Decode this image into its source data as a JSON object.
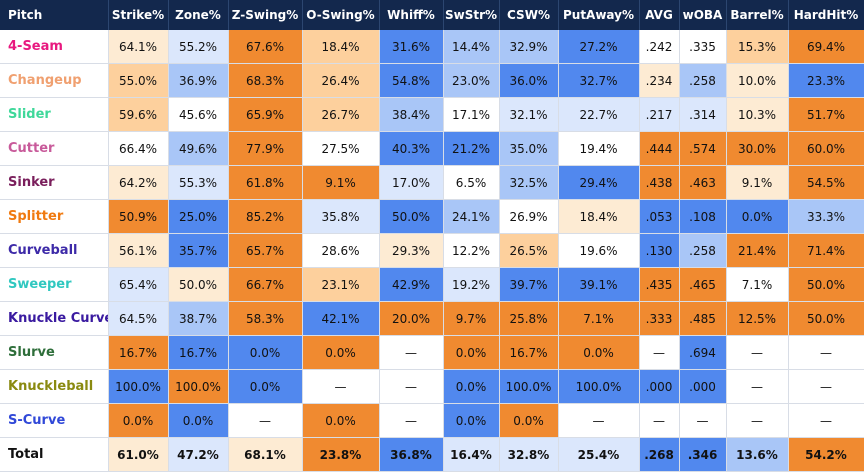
{
  "columns": [
    "Pitch",
    "Strike%",
    "Zone%",
    "Z-Swing%",
    "O-Swing%",
    "Whiff%",
    "SwStr%",
    "CSW%",
    "PutAway%",
    "AVG",
    "wOBA",
    "Barrel%",
    "HardHit%"
  ],
  "legend_colors": {
    "C0": "#ffffff",
    "CL": "#fdebd3",
    "CM": "#fdd09d",
    "CH": "#f08a30",
    "BL": "#dbe7fc",
    "BM": "#a9c6f7",
    "BH": "#5188ee"
  },
  "rows": [
    {
      "name": "4-Seam",
      "color": "#e8187f",
      "cells": [
        {
          "v": "64.1%",
          "c": "CL"
        },
        {
          "v": "55.2%",
          "c": "BL"
        },
        {
          "v": "67.6%",
          "c": "CH"
        },
        {
          "v": "18.4%",
          "c": "CM"
        },
        {
          "v": "31.6%",
          "c": "BH"
        },
        {
          "v": "14.4%",
          "c": "BM"
        },
        {
          "v": "32.9%",
          "c": "BM"
        },
        {
          "v": "27.2%",
          "c": "BH"
        },
        {
          "v": ".242",
          "c": "C0"
        },
        {
          "v": ".335",
          "c": "C0"
        },
        {
          "v": "15.3%",
          "c": "CM"
        },
        {
          "v": "69.4%",
          "c": "CH"
        }
      ]
    },
    {
      "name": "Changeup",
      "color": "#f0a070",
      "cells": [
        {
          "v": "55.0%",
          "c": "CM"
        },
        {
          "v": "36.9%",
          "c": "BM"
        },
        {
          "v": "68.3%",
          "c": "CH"
        },
        {
          "v": "26.4%",
          "c": "CM"
        },
        {
          "v": "54.8%",
          "c": "BH"
        },
        {
          "v": "23.0%",
          "c": "BM"
        },
        {
          "v": "36.0%",
          "c": "BH"
        },
        {
          "v": "32.7%",
          "c": "BH"
        },
        {
          "v": ".234",
          "c": "CL"
        },
        {
          "v": ".258",
          "c": "BM"
        },
        {
          "v": "10.0%",
          "c": "CL"
        },
        {
          "v": "23.3%",
          "c": "BH"
        }
      ]
    },
    {
      "name": "Slider",
      "color": "#3fd89a",
      "cells": [
        {
          "v": "59.6%",
          "c": "CM"
        },
        {
          "v": "45.6%",
          "c": "C0"
        },
        {
          "v": "65.9%",
          "c": "CH"
        },
        {
          "v": "26.7%",
          "c": "CM"
        },
        {
          "v": "38.4%",
          "c": "BM"
        },
        {
          "v": "17.1%",
          "c": "C0"
        },
        {
          "v": "32.1%",
          "c": "BL"
        },
        {
          "v": "22.7%",
          "c": "BL"
        },
        {
          "v": ".217",
          "c": "BL"
        },
        {
          "v": ".314",
          "c": "BL"
        },
        {
          "v": "10.3%",
          "c": "CL"
        },
        {
          "v": "51.7%",
          "c": "CH"
        }
      ]
    },
    {
      "name": "Cutter",
      "color": "#c85a9a",
      "cells": [
        {
          "v": "66.4%",
          "c": "C0"
        },
        {
          "v": "49.6%",
          "c": "BM"
        },
        {
          "v": "77.9%",
          "c": "CH"
        },
        {
          "v": "27.5%",
          "c": "C0"
        },
        {
          "v": "40.3%",
          "c": "BH"
        },
        {
          "v": "21.2%",
          "c": "BH"
        },
        {
          "v": "35.0%",
          "c": "BM"
        },
        {
          "v": "19.4%",
          "c": "C0"
        },
        {
          "v": ".444",
          "c": "CH"
        },
        {
          "v": ".574",
          "c": "CH"
        },
        {
          "v": "30.0%",
          "c": "CH"
        },
        {
          "v": "60.0%",
          "c": "CH"
        }
      ]
    },
    {
      "name": "Sinker",
      "color": "#7a1f5c",
      "cells": [
        {
          "v": "64.2%",
          "c": "CL"
        },
        {
          "v": "55.3%",
          "c": "BL"
        },
        {
          "v": "61.8%",
          "c": "CH"
        },
        {
          "v": "9.1%",
          "c": "CH"
        },
        {
          "v": "17.0%",
          "c": "BL"
        },
        {
          "v": "6.5%",
          "c": "C0"
        },
        {
          "v": "32.5%",
          "c": "BM"
        },
        {
          "v": "29.4%",
          "c": "BH"
        },
        {
          "v": ".438",
          "c": "CH"
        },
        {
          "v": ".463",
          "c": "CH"
        },
        {
          "v": "9.1%",
          "c": "CL"
        },
        {
          "v": "54.5%",
          "c": "CH"
        }
      ]
    },
    {
      "name": "Splitter",
      "color": "#f07a10",
      "cells": [
        {
          "v": "50.9%",
          "c": "CH"
        },
        {
          "v": "25.0%",
          "c": "BH"
        },
        {
          "v": "85.2%",
          "c": "CH"
        },
        {
          "v": "35.8%",
          "c": "BL"
        },
        {
          "v": "50.0%",
          "c": "BH"
        },
        {
          "v": "24.1%",
          "c": "BM"
        },
        {
          "v": "26.9%",
          "c": "C0"
        },
        {
          "v": "18.4%",
          "c": "CL"
        },
        {
          "v": ".053",
          "c": "BH"
        },
        {
          "v": ".108",
          "c": "BH"
        },
        {
          "v": "0.0%",
          "c": "BH"
        },
        {
          "v": "33.3%",
          "c": "BM"
        }
      ]
    },
    {
      "name": "Curveball",
      "color": "#3d2aa8",
      "cells": [
        {
          "v": "56.1%",
          "c": "CL"
        },
        {
          "v": "35.7%",
          "c": "BH"
        },
        {
          "v": "65.7%",
          "c": "CH"
        },
        {
          "v": "28.6%",
          "c": "C0"
        },
        {
          "v": "29.3%",
          "c": "CL"
        },
        {
          "v": "12.2%",
          "c": "C0"
        },
        {
          "v": "26.5%",
          "c": "CM"
        },
        {
          "v": "19.6%",
          "c": "C0"
        },
        {
          "v": ".130",
          "c": "BH"
        },
        {
          "v": ".258",
          "c": "BM"
        },
        {
          "v": "21.4%",
          "c": "CH"
        },
        {
          "v": "71.4%",
          "c": "CH"
        }
      ]
    },
    {
      "name": "Sweeper",
      "color": "#30c8c0",
      "cells": [
        {
          "v": "65.4%",
          "c": "BL"
        },
        {
          "v": "50.0%",
          "c": "CL"
        },
        {
          "v": "66.7%",
          "c": "CH"
        },
        {
          "v": "23.1%",
          "c": "CM"
        },
        {
          "v": "42.9%",
          "c": "BH"
        },
        {
          "v": "19.2%",
          "c": "BL"
        },
        {
          "v": "39.7%",
          "c": "BH"
        },
        {
          "v": "39.1%",
          "c": "BH"
        },
        {
          "v": ".435",
          "c": "CH"
        },
        {
          "v": ".465",
          "c": "CH"
        },
        {
          "v": "7.1%",
          "c": "C0"
        },
        {
          "v": "50.0%",
          "c": "CH"
        }
      ]
    },
    {
      "name": "Knuckle Curve",
      "color": "#3a1aa0",
      "cells": [
        {
          "v": "64.5%",
          "c": "BL"
        },
        {
          "v": "38.7%",
          "c": "BM"
        },
        {
          "v": "58.3%",
          "c": "CH"
        },
        {
          "v": "42.1%",
          "c": "BH"
        },
        {
          "v": "20.0%",
          "c": "CH"
        },
        {
          "v": "9.7%",
          "c": "CH"
        },
        {
          "v": "25.8%",
          "c": "CH"
        },
        {
          "v": "7.1%",
          "c": "CH"
        },
        {
          "v": ".333",
          "c": "CH"
        },
        {
          "v": ".485",
          "c": "CH"
        },
        {
          "v": "12.5%",
          "c": "CH"
        },
        {
          "v": "50.0%",
          "c": "CH"
        }
      ]
    },
    {
      "name": "Slurve",
      "color": "#2e6e3a",
      "cells": [
        {
          "v": "16.7%",
          "c": "CH"
        },
        {
          "v": "16.7%",
          "c": "BH"
        },
        {
          "v": "0.0%",
          "c": "BH"
        },
        {
          "v": "0.0%",
          "c": "CH"
        },
        {
          "v": "—",
          "c": "C0"
        },
        {
          "v": "0.0%",
          "c": "CH"
        },
        {
          "v": "16.7%",
          "c": "CH"
        },
        {
          "v": "0.0%",
          "c": "CH"
        },
        {
          "v": "—",
          "c": "C0"
        },
        {
          "v": ".694",
          "c": "BH"
        },
        {
          "v": "—",
          "c": "C0"
        },
        {
          "v": "—",
          "c": "C0"
        }
      ]
    },
    {
      "name": "Knuckleball",
      "color": "#8a8a10",
      "cells": [
        {
          "v": "100.0%",
          "c": "BH"
        },
        {
          "v": "100.0%",
          "c": "CH"
        },
        {
          "v": "0.0%",
          "c": "BH"
        },
        {
          "v": "—",
          "c": "C0"
        },
        {
          "v": "—",
          "c": "C0"
        },
        {
          "v": "0.0%",
          "c": "BH"
        },
        {
          "v": "100.0%",
          "c": "BH"
        },
        {
          "v": "100.0%",
          "c": "BH"
        },
        {
          "v": ".000",
          "c": "BH"
        },
        {
          "v": ".000",
          "c": "BH"
        },
        {
          "v": "—",
          "c": "C0"
        },
        {
          "v": "—",
          "c": "C0"
        }
      ]
    },
    {
      "name": "S-Curve",
      "color": "#3048d8",
      "cells": [
        {
          "v": "0.0%",
          "c": "CH"
        },
        {
          "v": "0.0%",
          "c": "BH"
        },
        {
          "v": "—",
          "c": "C0"
        },
        {
          "v": "0.0%",
          "c": "CH"
        },
        {
          "v": "—",
          "c": "C0"
        },
        {
          "v": "0.0%",
          "c": "BH"
        },
        {
          "v": "0.0%",
          "c": "CH"
        },
        {
          "v": "—",
          "c": "C0"
        },
        {
          "v": "—",
          "c": "C0"
        },
        {
          "v": "—",
          "c": "C0"
        },
        {
          "v": "—",
          "c": "C0"
        },
        {
          "v": "—",
          "c": "C0"
        }
      ]
    }
  ],
  "total": {
    "name": "Total",
    "cells": [
      {
        "v": "61.0%",
        "c": "CL"
      },
      {
        "v": "47.2%",
        "c": "BL"
      },
      {
        "v": "68.1%",
        "c": "CL"
      },
      {
        "v": "23.8%",
        "c": "CH"
      },
      {
        "v": "36.8%",
        "c": "BH"
      },
      {
        "v": "16.4%",
        "c": "BL"
      },
      {
        "v": "32.8%",
        "c": "BL"
      },
      {
        "v": "25.4%",
        "c": "BL"
      },
      {
        "v": ".268",
        "c": "BH"
      },
      {
        "v": ".346",
        "c": "BH"
      },
      {
        "v": "13.6%",
        "c": "BM"
      },
      {
        "v": "54.2%",
        "c": "CH"
      }
    ]
  }
}
